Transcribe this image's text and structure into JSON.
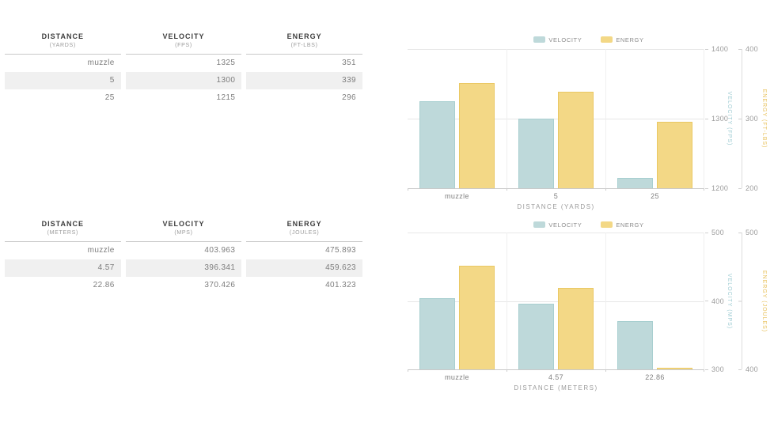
{
  "tables": [
    {
      "name": "imperial",
      "columns": [
        {
          "title": "DISTANCE",
          "unit": "(YARDS)"
        },
        {
          "title": "VELOCITY",
          "unit": "(FPS)"
        },
        {
          "title": "ENERGY",
          "unit": "(FT-LBS)"
        }
      ],
      "rows": [
        [
          "muzzle",
          "1325",
          "351"
        ],
        [
          "5",
          "1300",
          "339"
        ],
        [
          "25",
          "1215",
          "296"
        ]
      ]
    },
    {
      "name": "metric",
      "columns": [
        {
          "title": "DISTANCE",
          "unit": "(METERS)"
        },
        {
          "title": "VELOCITY",
          "unit": "(MPS)"
        },
        {
          "title": "ENERGY",
          "unit": "(JOULES)"
        }
      ],
      "rows": [
        [
          "muzzle",
          "403.963",
          "475.893"
        ],
        [
          "4.57",
          "396.341",
          "459.623"
        ],
        [
          "22.86",
          "370.426",
          "401.323"
        ]
      ]
    }
  ],
  "chart_data": [
    {
      "type": "bar",
      "categories": [
        "muzzle",
        "5",
        "25"
      ],
      "series": [
        {
          "name": "VELOCITY",
          "axis": "left",
          "color": "#bed9da",
          "values": [
            1325,
            1300,
            1215
          ]
        },
        {
          "name": "ENERGY",
          "axis": "right",
          "color": "#f3d886",
          "values": [
            351,
            339,
            296
          ]
        }
      ],
      "xlabel": "DISTANCE (YARDS)",
      "y_left": {
        "label": "VELOCITY (FPS)",
        "min": 1200,
        "max": 1400,
        "ticks": [
          "1400",
          "1300",
          "1200"
        ],
        "color": "#9fccd3"
      },
      "y_right": {
        "label": "ENERGY (FT-LBS)",
        "min": 200,
        "max": 400,
        "ticks": [
          "400",
          "300",
          "200"
        ],
        "color": "#e8c25d"
      },
      "grid": true,
      "legend_position": "top"
    },
    {
      "type": "bar",
      "categories": [
        "muzzle",
        "4.57",
        "22.86"
      ],
      "series": [
        {
          "name": "VELOCITY",
          "axis": "left",
          "color": "#bed9da",
          "values": [
            403.963,
            396.341,
            370.426
          ]
        },
        {
          "name": "ENERGY",
          "axis": "right",
          "color": "#f3d886",
          "values": [
            475.893,
            459.623,
            401.323
          ]
        }
      ],
      "xlabel": "DISTANCE (METERS)",
      "y_left": {
        "label": "VELOCITY (MPS)",
        "min": 300,
        "max": 500,
        "ticks": [
          "500",
          "400",
          "300"
        ],
        "color": "#9fccd3"
      },
      "y_right": {
        "label": "ENERGY (JOULES)",
        "min": 400,
        "max": 500,
        "ticks": [
          "500",
          "",
          "400"
        ],
        "color": "#e8c25d"
      },
      "grid": true,
      "legend_position": "top"
    }
  ],
  "colors": {
    "velocity": "#bed9da",
    "energy": "#f3d886",
    "velocity_axis_text": "#9fccd3",
    "energy_axis_text": "#e8c25d",
    "stripe": "#f0f0f0",
    "grid": "#e7e7e7"
  }
}
